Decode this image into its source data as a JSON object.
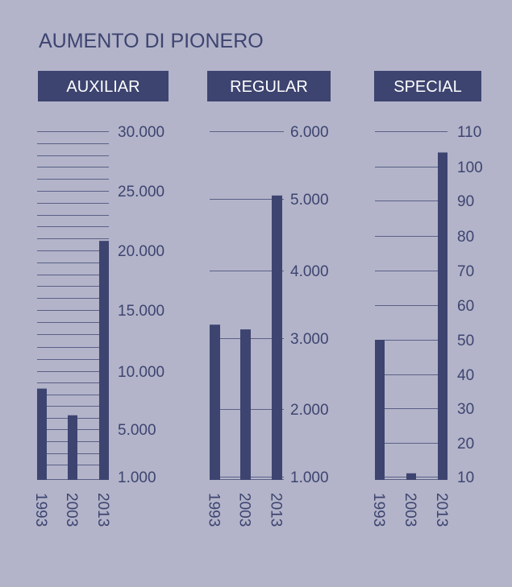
{
  "title": "AUMENTO DI PIONERO",
  "colors": {
    "background": "#b3b4c9",
    "bar": "#3d4470",
    "header": "#3d4470",
    "header_text": "#ffffff",
    "grid": "#3d4470"
  },
  "chart_data": [
    {
      "type": "bar",
      "title": "AUXILIAR",
      "categories": [
        "1993",
        "2003",
        "2013"
      ],
      "values": [
        8500,
        6200,
        20800
      ],
      "tick_labels": [
        "1.000",
        "5.000",
        "10.000",
        "15.000",
        "20.000",
        "25.000",
        "30.000"
      ],
      "grid": true
    },
    {
      "type": "bar",
      "title": "REGULAR",
      "categories": [
        "1993",
        "2003",
        "2013"
      ],
      "values": [
        3200,
        3130,
        5050
      ],
      "tick_labels": [
        "1.000",
        "2.000",
        "3.000",
        "4.000",
        "5.000",
        "6.000"
      ],
      "grid": true
    },
    {
      "type": "bar",
      "title": "SPECIAL",
      "categories": [
        "1993",
        "2003",
        "2013"
      ],
      "values": [
        50,
        11,
        104
      ],
      "tick_labels": [
        "10",
        "20",
        "30",
        "40",
        "50",
        "60",
        "70",
        "80",
        "90",
        "100",
        "110"
      ],
      "grid": true
    }
  ]
}
